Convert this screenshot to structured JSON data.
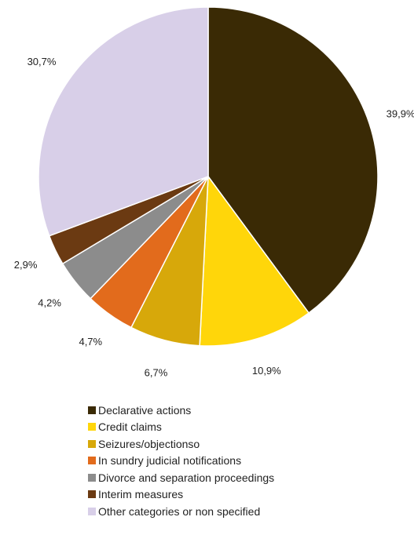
{
  "chart_data": {
    "type": "pie",
    "start_angle_deg": 0,
    "direction": "clockwise",
    "legend_position": "bottom",
    "slices": [
      {
        "label": "Declarative actions",
        "value": 39.9,
        "value_label": "39,9%",
        "color": "#3a2a05"
      },
      {
        "label": "Credit claims",
        "value": 10.9,
        "value_label": "10,9%",
        "color": "#ffd60a"
      },
      {
        "label": "Seizures/objectionso",
        "value": 6.7,
        "value_label": "6,7%",
        "color": "#d7a80a"
      },
      {
        "label": "In sundry judicial notifications",
        "value": 4.7,
        "value_label": "4,7%",
        "color": "#e26b1c"
      },
      {
        "label": "Divorce and separation proceedings",
        "value": 4.2,
        "value_label": "4,2%",
        "color": "#8c8c8c"
      },
      {
        "label": "Interim measures",
        "value": 2.9,
        "value_label": "2,9%",
        "color": "#6b3a12"
      },
      {
        "label": "Other categories or non specified",
        "value": 30.7,
        "value_label": "30,7%",
        "color": "#d8cfe8"
      }
    ]
  }
}
